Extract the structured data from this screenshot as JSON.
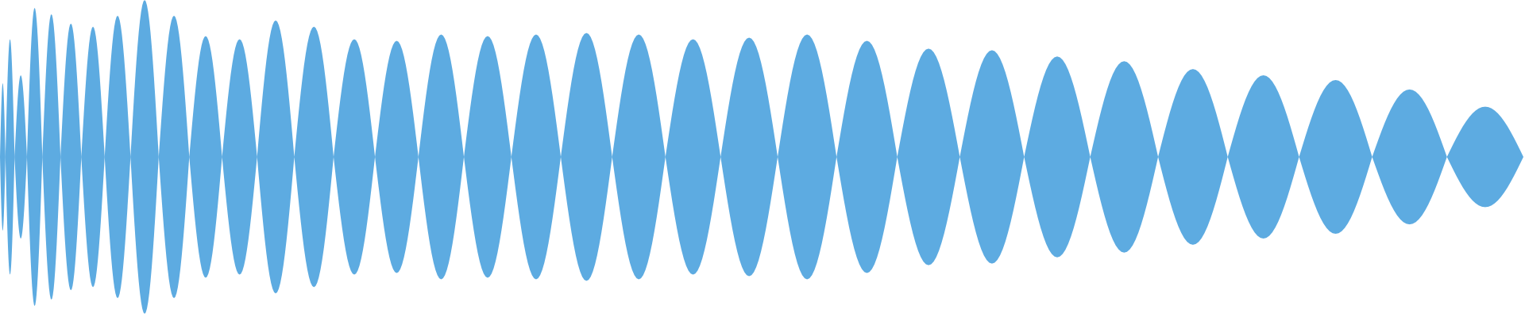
{
  "chart_data": {
    "type": "area",
    "description_style": "mirrored waveform envelope",
    "color": "#5DABE1",
    "background": "#FFFFFF",
    "title": "",
    "xlabel": "",
    "ylabel": "",
    "ylim": [
      -1,
      1
    ],
    "grid": false,
    "legend": "none",
    "series": [
      {
        "lobes": [
          0.47,
          0.75,
          0.52,
          0.95,
          0.91,
          0.85,
          0.83,
          0.9,
          1.0,
          0.9,
          0.77,
          0.75,
          0.87,
          0.83,
          0.75,
          0.74,
          0.78,
          0.77,
          0.78,
          0.79,
          0.78,
          0.75,
          0.76,
          0.78,
          0.74,
          0.69,
          0.68,
          0.64,
          0.61,
          0.56,
          0.52,
          0.49,
          0.43,
          0.32
        ]
      }
    ]
  }
}
